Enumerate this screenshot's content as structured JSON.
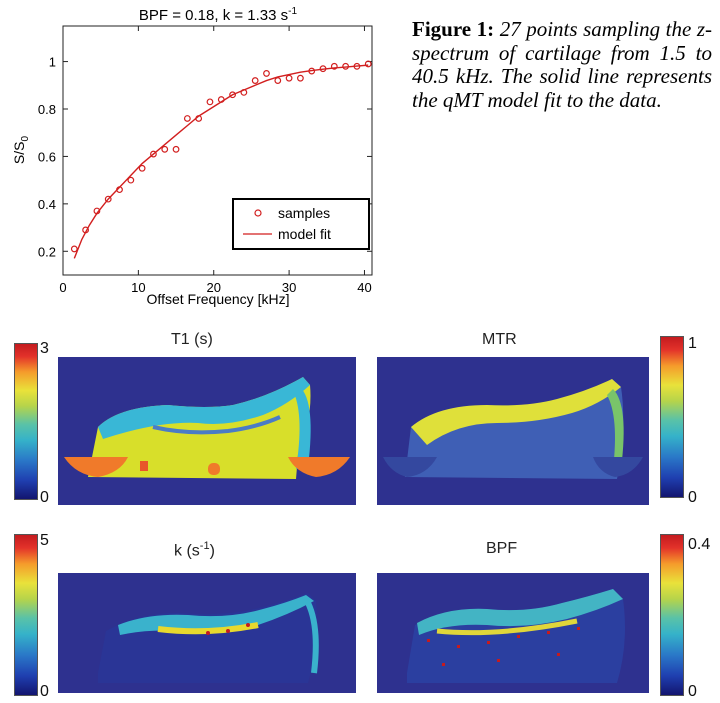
{
  "chart_data": {
    "type": "scatter",
    "title": "BPF = 0.18, k = 1.33 s",
    "title_sup": "-1",
    "xlabel": "Offset Frequency [kHz]",
    "ylabel_main": "S/S",
    "ylabel_sub": "0",
    "xlim": [
      0,
      41
    ],
    "ylim": [
      0.1,
      1.15
    ],
    "xticks": [
      0,
      10,
      20,
      30,
      40
    ],
    "yticks": [
      0.2,
      0.4,
      0.6,
      0.8,
      1
    ],
    "xtick_labels": [
      "0",
      "10",
      "20",
      "30",
      "40"
    ],
    "ytick_labels": [
      "0.2",
      "0.4",
      "0.6",
      "0.8",
      "1"
    ],
    "grid": false,
    "legend_position": "bottom-right",
    "color": "#d21f1f",
    "series": [
      {
        "name": "samples",
        "kind": "markers",
        "x": [
          1.5,
          3,
          4.5,
          6,
          7.5,
          9,
          10.5,
          12,
          13.5,
          15,
          16.5,
          18,
          19.5,
          21,
          22.5,
          24,
          25.5,
          27,
          28.5,
          30,
          31.5,
          33,
          34.5,
          36,
          37.5,
          39,
          40.5
        ],
        "y": [
          0.21,
          0.29,
          0.37,
          0.42,
          0.46,
          0.5,
          0.55,
          0.61,
          0.63,
          0.63,
          0.76,
          0.76,
          0.83,
          0.84,
          0.86,
          0.87,
          0.92,
          0.95,
          0.92,
          0.93,
          0.93,
          0.96,
          0.97,
          0.98,
          0.98,
          0.98,
          0.99
        ]
      },
      {
        "name": "model fit",
        "kind": "line",
        "x": [
          1.5,
          2.5,
          3.5,
          4.5,
          6,
          7.5,
          9,
          10.5,
          12,
          13.5,
          15,
          16.5,
          18,
          19.5,
          21,
          22.5,
          24,
          25.5,
          27,
          28.5,
          30,
          31.5,
          33,
          34.5,
          36,
          37.5,
          39,
          40.5
        ],
        "y": [
          0.17,
          0.25,
          0.31,
          0.36,
          0.42,
          0.47,
          0.52,
          0.57,
          0.61,
          0.65,
          0.69,
          0.73,
          0.77,
          0.8,
          0.83,
          0.86,
          0.88,
          0.9,
          0.92,
          0.935,
          0.945,
          0.955,
          0.962,
          0.968,
          0.973,
          0.977,
          0.981,
          0.985
        ]
      }
    ]
  },
  "caption": {
    "label": "Figure 1:",
    "text": "27 points sampling the z-spectrum of cartilage from 1.5 to 40.5 kHz. The solid line represents the qMT model fit to the data."
  },
  "maps": {
    "t1": {
      "title": "T1 (s)",
      "cb_max": "3",
      "cb_min": "0"
    },
    "mtr": {
      "title": "MTR",
      "cb_max": "1",
      "cb_min": "0"
    },
    "k": {
      "title": "k (s",
      "title_sup": "-1",
      "title_close": ")",
      "cb_max": "5",
      "cb_min": "0"
    },
    "bpf": {
      "title": "BPF",
      "cb_max": "0.4",
      "cb_min": "0"
    }
  }
}
